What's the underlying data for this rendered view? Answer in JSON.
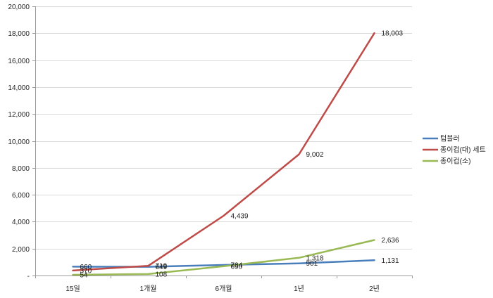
{
  "chart_data": {
    "type": "line",
    "title": "",
    "xlabel": "",
    "ylabel": "",
    "categories": [
      "15일",
      "1개월",
      "6개월",
      "1년",
      "2년"
    ],
    "ylim": [
      0,
      20000
    ],
    "yticks": [
      0,
      2000,
      4000,
      6000,
      8000,
      10000,
      12000,
      14000,
      16000,
      18000,
      20000
    ],
    "ytick_labels": [
      "-",
      "2,000",
      "4,000",
      "6,000",
      "8,000",
      "10,000",
      "12,000",
      "14,000",
      "16,000",
      "18,000",
      "20,000"
    ],
    "grid": true,
    "legend_position": "right",
    "series": [
      {
        "name": "텀블러",
        "color": "#4a7ebb",
        "values": [
          660,
          649,
          784,
          901,
          1131
        ],
        "labels": [
          "660",
          "649",
          "784",
          "901",
          "1,131"
        ]
      },
      {
        "name": "종이컵(대) 세트",
        "color": "#be4b48",
        "values": [
          370,
          719,
          4439,
          9002,
          18003
        ],
        "labels": [
          "370",
          "719",
          "4,439",
          "9,002",
          "18,003"
        ]
      },
      {
        "name": "종이컵(소)",
        "color": "#98b954",
        "values": [
          54,
          108,
          690,
          1318,
          2636
        ],
        "labels": [
          "54",
          "108",
          "690",
          "1,318",
          "2,636"
        ]
      }
    ]
  }
}
